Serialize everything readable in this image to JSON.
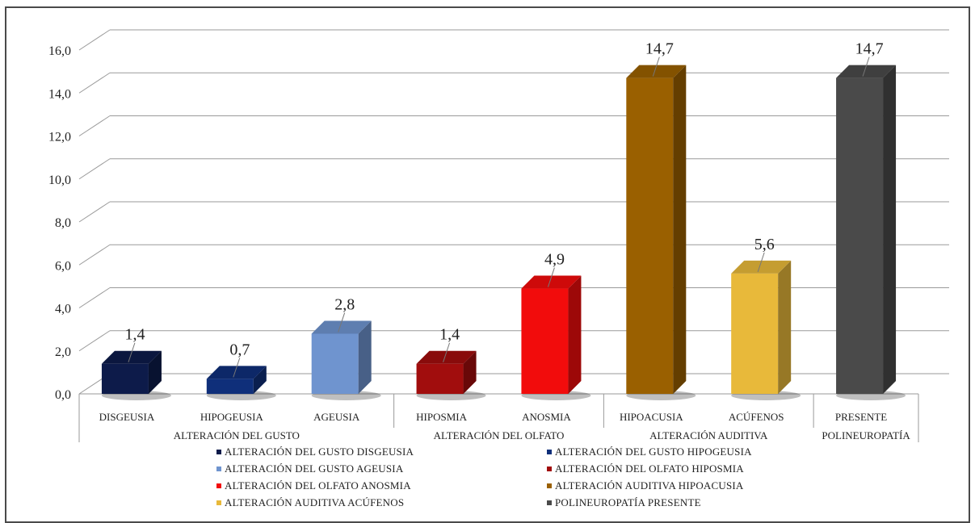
{
  "chart_data": {
    "type": "bar",
    "y_ticks": [
      "0,0",
      "2,0",
      "4,0",
      "6,0",
      "8,0",
      "10,0",
      "12,0",
      "14,0",
      "16,0"
    ],
    "ylim": [
      0,
      16
    ],
    "grid": true,
    "legend_position": "bottom",
    "bars": [
      {
        "category": "DISGEUSIA",
        "value": 1.4,
        "label": "1,4",
        "color": "#0d1b4a"
      },
      {
        "category": "HIPOGEUSIA",
        "value": 0.7,
        "label": "0,7",
        "color": "#0f2f7a"
      },
      {
        "category": "AGEUSIA",
        "value": 2.8,
        "label": "2,8",
        "color": "#6f94cf"
      },
      {
        "category": "HIPOSMIA",
        "value": 1.4,
        "label": "1,4",
        "color": "#a10d0d"
      },
      {
        "category": "ANOSMIA",
        "value": 4.9,
        "label": "4,9",
        "color": "#f20c0c"
      },
      {
        "category": "HIPOACUSIA",
        "value": 14.7,
        "label": "14,7",
        "color": "#9a6000"
      },
      {
        "category": "ACÚFENOS",
        "value": 5.6,
        "label": "5,6",
        "color": "#e8b93a"
      },
      {
        "category": "PRESENTE",
        "value": 14.7,
        "label": "14,7",
        "color": "#4a4a4a"
      }
    ],
    "groups": [
      {
        "label": "ALTERACIÓN DEL GUSTO"
      },
      {
        "label": "ALTERACIÓN DEL OLFATO"
      },
      {
        "label": "ALTERACIÓN AUDITIVA"
      },
      {
        "label": "POLINEUROPATÍA"
      }
    ],
    "legend": [
      {
        "label": "ALTERACIÓN DEL GUSTO DISGEUSIA",
        "color": "#0d1b4a"
      },
      {
        "label": "ALTERACIÓN DEL GUSTO HIPOGEUSIA",
        "color": "#0f2f7a"
      },
      {
        "label": "ALTERACIÓN DEL GUSTO AGEUSIA",
        "color": "#6f94cf"
      },
      {
        "label": "ALTERACIÓN DEL OLFATO HIPOSMIA",
        "color": "#a10d0d"
      },
      {
        "label": "ALTERACIÓN DEL OLFATO ANOSMIA",
        "color": "#f20c0c"
      },
      {
        "label": "ALTERACIÓN AUDITIVA HIPOACUSIA",
        "color": "#9a6000"
      },
      {
        "label": "ALTERACIÓN AUDITIVA ACÚFENOS",
        "color": "#e8b93a"
      },
      {
        "label": "POLINEUROPATÍA PRESENTE",
        "color": "#4a4a4a"
      }
    ]
  }
}
